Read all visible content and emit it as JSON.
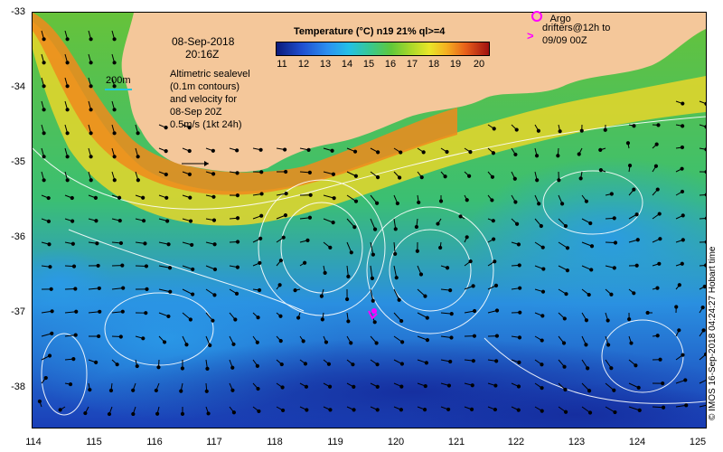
{
  "map": {
    "date": "08-Sep-2018",
    "time": "20:16Z",
    "scale_label": "200m",
    "notes": [
      "Altimetric sealevel",
      "(0.1m contours)",
      "and velocity for",
      "08-Sep 20Z",
      "0.5m/s (1kt 24h)"
    ],
    "colorbar_title": "Temperature (°C) n19 21% ql>=4",
    "colorbar_ticks": [
      "11",
      "12",
      "13",
      "14",
      "15",
      "16",
      "17",
      "18",
      "19",
      "20"
    ],
    "legend": {
      "argo": "Argo",
      "drifters": "drifters@12h to",
      "drifters_line2": "09/09 00Z"
    },
    "credit": "© IMOS 16-Sep-2018 04:24:27 Hobart time",
    "latitude_labels": [
      "-33",
      "-34",
      "-35",
      "-36",
      "-37",
      "-38"
    ],
    "longitude_labels": [
      "114",
      "115",
      "116",
      "117",
      "118",
      "119",
      "120",
      "121",
      "122",
      "123",
      "124",
      "125"
    ],
    "colors": {
      "land": "#f4c79a",
      "argo_marker": "#ff00ff",
      "contour": "#ffffff",
      "scale_line": "#21c7de"
    }
  }
}
